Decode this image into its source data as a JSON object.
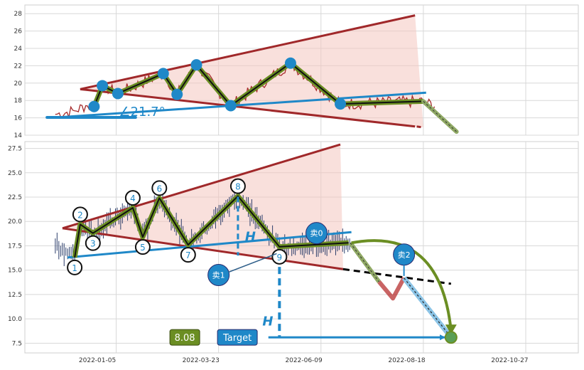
{
  "chart_data": [
    {
      "type": "line",
      "ylim": [
        14,
        29
      ],
      "yticks": [
        14,
        16,
        18,
        20,
        22,
        24,
        26,
        28
      ],
      "colors": {
        "price": "#a52a2a",
        "zigzag": "#6b8e23",
        "trend": "#a52a2a",
        "fill": "#f4c7c0",
        "support": "#1f88c8",
        "pivot": "#1f88c8"
      },
      "pivots": [
        {
          "x": 0.125,
          "y": 17.3
        },
        {
          "x": 0.14,
          "y": 19.7
        },
        {
          "x": 0.168,
          "y": 18.8
        },
        {
          "x": 0.25,
          "y": 21.1
        },
        {
          "x": 0.275,
          "y": 18.7
        },
        {
          "x": 0.31,
          "y": 22.1
        },
        {
          "x": 0.372,
          "y": 17.4
        },
        {
          "x": 0.48,
          "y": 22.3
        },
        {
          "x": 0.57,
          "y": 17.6
        },
        {
          "x": 0.72,
          "y": 17.9
        }
      ],
      "upper_trend": {
        "x": [
          0.1,
          0.705
        ],
        "y": [
          19.3,
          27.8
        ]
      },
      "lower_trend": {
        "x": [
          0.1,
          0.72
        ],
        "y": [
          19.3,
          14.9
        ]
      },
      "support_line": {
        "x": [
          0.07,
          0.725
        ],
        "y": [
          16.1,
          18.9
        ]
      },
      "projection": {
        "x": [
          0.72,
          0.78
        ],
        "y": [
          17.9,
          14.4
        ]
      },
      "angle_label": "∠21.7°"
    },
    {
      "type": "line",
      "ylim": [
        6.5,
        28.2
      ],
      "yticks": [
        7.5,
        10.0,
        12.5,
        15.0,
        17.5,
        20.0,
        22.5,
        25.0,
        27.5
      ],
      "xticks": [
        "2022-01-05",
        "2022-03-23",
        "2022-06-09",
        "2022-08-18",
        "2022-10-27"
      ],
      "pivots": [
        {
          "label": "1",
          "x": 0.09,
          "y": 16.3
        },
        {
          "label": "2",
          "x": 0.1,
          "y": 19.7
        },
        {
          "label": "3",
          "x": 0.123,
          "y": 18.8
        },
        {
          "label": "4",
          "x": 0.195,
          "y": 21.4
        },
        {
          "label": "5",
          "x": 0.213,
          "y": 18.4
        },
        {
          "label": "6",
          "x": 0.243,
          "y": 22.4
        },
        {
          "label": "7",
          "x": 0.295,
          "y": 17.6
        },
        {
          "label": "8",
          "x": 0.385,
          "y": 22.6
        },
        {
          "label": "9",
          "x": 0.46,
          "y": 17.4
        },
        {
          "label": "",
          "x": 0.585,
          "y": 17.8
        }
      ],
      "upper_trend": {
        "x": [
          0.068,
          0.57
        ],
        "y": [
          19.3,
          27.9
        ]
      },
      "lower_trend": {
        "x": [
          0.068,
          0.575
        ],
        "y": [
          19.3,
          15.1
        ]
      },
      "support_line": {
        "x": [
          0.077,
          0.59
        ],
        "y": [
          16.3,
          18.9
        ]
      },
      "lower_extension": {
        "x": [
          0.575,
          0.77
        ],
        "y": [
          15.1,
          13.6
        ]
      },
      "projected_path": {
        "x": [
          0.588,
          0.665,
          0.685,
          0.77
        ],
        "y": [
          17.8,
          12.1,
          14.2,
          8.1
        ]
      },
      "curved_arrow": {
        "from": {
          "x": 0.59,
          "y": 17.8
        },
        "to": {
          "x": 0.77,
          "y": 8.1
        }
      },
      "height_marker_pattern": {
        "x": 0.385,
        "y_top": 23.5,
        "y_bottom": 16.5,
        "label": "H"
      },
      "height_marker_target": {
        "x": 0.46,
        "y_top": 16.5,
        "y_bottom": 8.1,
        "label": "H"
      },
      "sell_points": [
        {
          "label": "卖0",
          "x": 0.527,
          "y": 18.8
        },
        {
          "label": "卖1",
          "x": 0.35,
          "y": 14.5
        },
        {
          "label": "卖2",
          "x": 0.685,
          "y": 16.6
        }
      ],
      "target_value": "8.08",
      "target_label": "Target",
      "target_arrow_y": 8.1
    }
  ],
  "colors": {
    "axis_bg": "#ffffff",
    "grid": "#d8d8d8",
    "price_line": "#a52a2a",
    "zigzag": "#6b8e23",
    "trend": "#a0282a",
    "fill": "#f4c7c0",
    "support": "#1f88c8",
    "sell_circle": "#1f88c8",
    "target_green": "#6b8e23",
    "target_blue": "#1f88c8",
    "down_path": "#b22222"
  }
}
